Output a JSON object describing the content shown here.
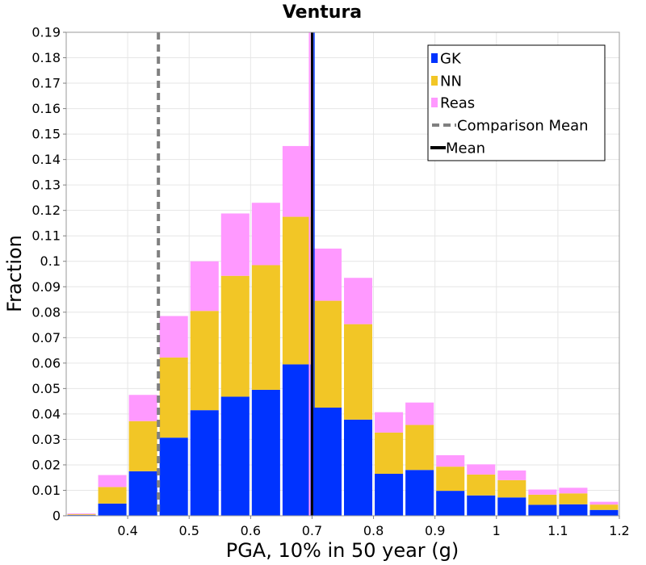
{
  "chart_data": {
    "type": "bar",
    "stacked": true,
    "title": "Ventura",
    "xlabel": "PGA, 10% in 50 year (g)",
    "ylabel": "Fraction",
    "xlim": [
      0.3,
      1.2
    ],
    "ylim": [
      0,
      0.19
    ],
    "x_ticks": [
      "0.4",
      "0.5",
      "0.6",
      "0.7",
      "0.8",
      "0.9",
      "1",
      "1.1",
      "1.2"
    ],
    "x_tick_values": [
      0.4,
      0.5,
      0.6,
      0.7,
      0.8,
      0.9,
      1.0,
      1.1,
      1.2
    ],
    "y_ticks": [
      "0",
      "0.01",
      "0.02",
      "0.03",
      "0.04",
      "0.05",
      "0.06",
      "0.07",
      "0.08",
      "0.09",
      "0.1",
      "0.11",
      "0.12",
      "0.13",
      "0.14",
      "0.15",
      "0.16",
      "0.17",
      "0.18",
      "0.19"
    ],
    "y_tick_values": [
      0,
      0.01,
      0.02,
      0.03,
      0.04,
      0.05,
      0.06,
      0.07,
      0.08,
      0.09,
      0.1,
      0.11,
      0.12,
      0.13,
      0.14,
      0.15,
      0.16,
      0.17,
      0.18,
      0.19
    ],
    "bin_width": 0.05,
    "x": [
      0.325,
      0.375,
      0.425,
      0.475,
      0.525,
      0.575,
      0.625,
      0.675,
      0.725,
      0.775,
      0.825,
      0.875,
      0.925,
      0.975,
      1.025,
      1.075,
      1.125,
      1.175
    ],
    "series": [
      {
        "name": "GK",
        "color": "#0033ff",
        "values": [
          0.0003,
          0.0048,
          0.0175,
          0.0307,
          0.0415,
          0.0468,
          0.0495,
          0.0595,
          0.0425,
          0.0378,
          0.0165,
          0.018,
          0.0098,
          0.008,
          0.0072,
          0.0043,
          0.0045,
          0.0023
        ]
      },
      {
        "name": "NN",
        "color": "#f2c626",
        "values": [
          0.0003,
          0.0065,
          0.0197,
          0.0315,
          0.039,
          0.0475,
          0.049,
          0.058,
          0.042,
          0.0375,
          0.0162,
          0.0177,
          0.0095,
          0.0082,
          0.0068,
          0.004,
          0.0043,
          0.0021
        ]
      },
      {
        "name": "Reas",
        "color": "#ff99ff",
        "values": [
          0.0003,
          0.0047,
          0.0103,
          0.0163,
          0.0195,
          0.0245,
          0.0245,
          0.0278,
          0.0205,
          0.0182,
          0.008,
          0.0088,
          0.0045,
          0.004,
          0.0038,
          0.002,
          0.0022,
          0.0011
        ]
      }
    ],
    "lines": [
      {
        "name": "Comparison Mean",
        "x": 0.45,
        "color": "#808080",
        "style": "dashed"
      },
      {
        "name": "Mean",
        "x": 0.7,
        "color": "#000000",
        "style": "solid"
      }
    ],
    "grid": true,
    "legend_position": "top-right"
  }
}
